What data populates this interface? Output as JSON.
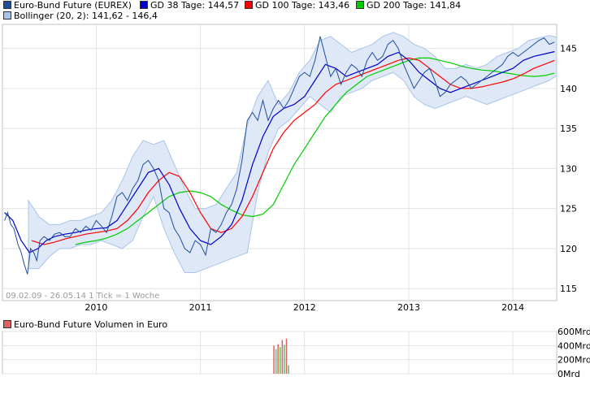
{
  "legend": [
    {
      "label": "Euro-Bund Future (EUREX)",
      "color": "#1f4e9c"
    },
    {
      "label": "GD 38 Tage: 144,57",
      "color": "#0000cc"
    },
    {
      "label": "GD 100 Tage: 143,46",
      "color": "#ff0000"
    },
    {
      "label": "GD 200 Tage: 141,84",
      "color": "#00cc00"
    },
    {
      "label": "Bollinger (20, 2): 141,62 - 146,4",
      "color": "#a9c4e8"
    }
  ],
  "info_text": "09.02.09 - 26.05.14   1 Tick = 1 Woche",
  "volume_legend": {
    "label": "Euro-Bund Future Volumen in Euro",
    "color": "#e06060"
  },
  "chart_data": [
    {
      "type": "line",
      "x_ticks": [
        "2010",
        "2011",
        "2012",
        "2013",
        "2014"
      ],
      "x_tick_years": [
        2010,
        2011,
        2012,
        2013,
        2014
      ],
      "y_ticks": [
        115,
        120,
        125,
        130,
        135,
        140,
        145
      ],
      "ylim": [
        113.5,
        148
      ],
      "xlim": [
        2009.1,
        2014.42
      ],
      "grid": true,
      "series": [
        {
          "name": "Euro-Bund Future (EUREX)",
          "color": "#1f4e9c",
          "x": [
            2009.12,
            2009.15,
            2009.18,
            2009.21,
            2009.25,
            2009.28,
            2009.31,
            2009.34,
            2009.37,
            2009.4,
            2009.43,
            2009.46,
            2009.5,
            2009.55,
            2009.6,
            2009.65,
            2009.7,
            2009.75,
            2009.8,
            2009.85,
            2009.9,
            2009.95,
            2010.0,
            2010.05,
            2010.1,
            2010.15,
            2010.2,
            2010.25,
            2010.3,
            2010.35,
            2010.4,
            2010.45,
            2010.5,
            2010.55,
            2010.6,
            2010.65,
            2010.7,
            2010.75,
            2010.8,
            2010.85,
            2010.9,
            2010.95,
            2011.0,
            2011.05,
            2011.1,
            2011.15,
            2011.2,
            2011.25,
            2011.3,
            2011.35,
            2011.4,
            2011.45,
            2011.5,
            2011.55,
            2011.6,
            2011.65,
            2011.7,
            2011.75,
            2011.8,
            2011.85,
            2011.9,
            2011.95,
            2012.0,
            2012.05,
            2012.1,
            2012.15,
            2012.2,
            2012.25,
            2012.3,
            2012.35,
            2012.4,
            2012.45,
            2012.5,
            2012.55,
            2012.6,
            2012.65,
            2012.7,
            2012.75,
            2012.8,
            2012.85,
            2012.9,
            2012.95,
            2013.0,
            2013.05,
            2013.1,
            2013.15,
            2013.2,
            2013.25,
            2013.3,
            2013.35,
            2013.4,
            2013.45,
            2013.5,
            2013.55,
            2013.6,
            2013.65,
            2013.7,
            2013.75,
            2013.8,
            2013.85,
            2013.9,
            2013.95,
            2014.0,
            2014.05,
            2014.1,
            2014.15,
            2014.2,
            2014.25,
            2014.3,
            2014.35,
            2014.4
          ],
          "y": [
            123.5,
            124.5,
            123.0,
            122.5,
            120.5,
            119.5,
            118.0,
            116.8,
            120.0,
            119.5,
            118.5,
            121.0,
            121.5,
            121.0,
            121.8,
            122.0,
            121.5,
            121.5,
            122.5,
            122.0,
            122.8,
            122.3,
            123.5,
            122.8,
            122.0,
            124.0,
            126.5,
            127.0,
            126.0,
            127.5,
            128.5,
            130.5,
            131.0,
            130.0,
            128.5,
            125.0,
            124.5,
            122.5,
            121.5,
            120.0,
            119.5,
            121.0,
            120.5,
            119.2,
            122.5,
            122.0,
            123.0,
            124.5,
            125.5,
            127.5,
            131.0,
            136.0,
            137.0,
            136.0,
            138.5,
            136.0,
            137.5,
            138.5,
            137.5,
            138.5,
            140.0,
            141.5,
            142.0,
            141.5,
            143.5,
            146.5,
            144.0,
            141.5,
            142.5,
            140.5,
            142.0,
            143.0,
            142.5,
            141.5,
            143.5,
            144.5,
            143.5,
            144.0,
            145.5,
            146.0,
            145.0,
            143.0,
            141.5,
            140.0,
            141.0,
            142.0,
            142.5,
            141.0,
            139.0,
            139.5,
            140.5,
            141.0,
            141.5,
            141.0,
            140.0,
            140.5,
            141.0,
            141.5,
            142.0,
            142.5,
            143.0,
            144.0,
            144.5,
            144.0,
            144.5,
            145.0,
            145.5,
            146.0,
            146.3,
            145.5,
            145.8
          ]
        },
        {
          "name": "GD 38 Tage",
          "color": "#0000cc",
          "x": [
            2009.12,
            2009.2,
            2009.28,
            2009.36,
            2009.44,
            2009.52,
            2009.6,
            2009.7,
            2009.8,
            2009.9,
            2010.0,
            2010.1,
            2010.2,
            2010.3,
            2010.4,
            2010.5,
            2010.6,
            2010.7,
            2010.8,
            2010.9,
            2011.0,
            2011.1,
            2011.2,
            2011.3,
            2011.4,
            2011.5,
            2011.6,
            2011.7,
            2011.8,
            2011.9,
            2012.0,
            2012.1,
            2012.2,
            2012.3,
            2012.4,
            2012.5,
            2012.6,
            2012.7,
            2012.8,
            2012.9,
            2013.0,
            2013.1,
            2013.2,
            2013.3,
            2013.4,
            2013.5,
            2013.6,
            2013.7,
            2013.8,
            2013.9,
            2014.0,
            2014.1,
            2014.2,
            2014.3,
            2014.4
          ],
          "y": [
            124.5,
            123.5,
            121.0,
            119.5,
            120.0,
            121.0,
            121.5,
            121.8,
            122.0,
            122.3,
            122.5,
            122.6,
            123.5,
            125.5,
            127.5,
            129.5,
            130.0,
            128.0,
            125.0,
            122.5,
            121.0,
            120.5,
            121.5,
            123.0,
            126.0,
            130.5,
            134.0,
            136.5,
            137.5,
            138.0,
            139.0,
            141.0,
            143.0,
            142.5,
            141.5,
            142.0,
            142.5,
            143.0,
            144.0,
            144.5,
            143.5,
            142.0,
            141.0,
            140.0,
            139.5,
            140.0,
            140.5,
            141.0,
            141.5,
            142.0,
            142.5,
            143.5,
            144.0,
            144.3,
            144.6
          ]
        },
        {
          "name": "GD 100 Tage",
          "color": "#ff0000",
          "x": [
            2009.38,
            2009.5,
            2009.6,
            2009.7,
            2009.8,
            2009.9,
            2010.0,
            2010.1,
            2010.2,
            2010.3,
            2010.4,
            2010.5,
            2010.6,
            2010.7,
            2010.8,
            2010.9,
            2011.0,
            2011.1,
            2011.2,
            2011.3,
            2011.4,
            2011.5,
            2011.6,
            2011.7,
            2011.8,
            2011.9,
            2012.0,
            2012.1,
            2012.2,
            2012.3,
            2012.4,
            2012.5,
            2012.6,
            2012.7,
            2012.8,
            2012.9,
            2013.0,
            2013.1,
            2013.2,
            2013.3,
            2013.4,
            2013.5,
            2013.6,
            2013.7,
            2013.8,
            2013.9,
            2014.0,
            2014.1,
            2014.2,
            2014.3,
            2014.4
          ],
          "y": [
            121.0,
            120.5,
            120.8,
            121.2,
            121.5,
            121.8,
            122.0,
            122.2,
            122.5,
            123.5,
            125.0,
            127.0,
            128.5,
            129.5,
            129.0,
            127.0,
            124.5,
            122.5,
            122.0,
            122.5,
            124.0,
            126.5,
            129.5,
            132.5,
            134.5,
            136.0,
            137.0,
            138.0,
            139.5,
            140.5,
            141.0,
            141.5,
            142.0,
            142.5,
            143.0,
            143.5,
            143.8,
            143.5,
            142.5,
            141.5,
            140.5,
            140.0,
            140.0,
            140.2,
            140.5,
            140.8,
            141.2,
            141.8,
            142.5,
            143.0,
            143.5
          ]
        },
        {
          "name": "GD 200 Tage",
          "color": "#00cc00",
          "x": [
            2009.8,
            2009.9,
            2010.0,
            2010.1,
            2010.2,
            2010.3,
            2010.4,
            2010.5,
            2010.6,
            2010.7,
            2010.8,
            2010.9,
            2011.0,
            2011.1,
            2011.2,
            2011.3,
            2011.4,
            2011.5,
            2011.6,
            2011.7,
            2011.8,
            2011.9,
            2012.0,
            2012.1,
            2012.2,
            2012.3,
            2012.4,
            2012.5,
            2012.6,
            2012.7,
            2012.8,
            2012.9,
            2013.0,
            2013.1,
            2013.2,
            2013.3,
            2013.4,
            2013.5,
            2013.6,
            2013.7,
            2013.8,
            2013.9,
            2014.0,
            2014.1,
            2014.2,
            2014.3,
            2014.4
          ],
          "y": [
            120.5,
            120.8,
            121.0,
            121.3,
            121.8,
            122.5,
            123.5,
            124.5,
            125.5,
            126.5,
            127.0,
            127.2,
            127.0,
            126.5,
            125.5,
            124.8,
            124.2,
            124.0,
            124.3,
            125.5,
            128.0,
            130.5,
            132.5,
            134.5,
            136.5,
            138.0,
            139.5,
            140.5,
            141.5,
            142.0,
            142.5,
            143.0,
            143.5,
            143.8,
            143.8,
            143.5,
            143.2,
            142.8,
            142.5,
            142.3,
            142.2,
            142.0,
            141.8,
            141.6,
            141.5,
            141.6,
            141.9
          ]
        },
        {
          "name": "Bollinger (20, 2)",
          "color": "#a9c4e8",
          "x": [
            2009.35,
            2009.45,
            2009.55,
            2009.65,
            2009.75,
            2009.85,
            2009.95,
            2010.05,
            2010.15,
            2010.25,
            2010.35,
            2010.45,
            2010.55,
            2010.65,
            2010.75,
            2010.85,
            2010.95,
            2011.05,
            2011.15,
            2011.25,
            2011.35,
            2011.45,
            2011.55,
            2011.65,
            2011.75,
            2011.85,
            2011.95,
            2012.05,
            2012.15,
            2012.25,
            2012.35,
            2012.45,
            2012.55,
            2012.65,
            2012.75,
            2012.85,
            2012.95,
            2013.05,
            2013.15,
            2013.25,
            2013.35,
            2013.45,
            2013.55,
            2013.65,
            2013.75,
            2013.85,
            2013.95,
            2014.05,
            2014.15,
            2014.25,
            2014.35,
            2014.42
          ],
          "upper": [
            126.0,
            124.0,
            123.0,
            123.0,
            123.5,
            123.5,
            124.0,
            124.5,
            126.0,
            128.5,
            131.5,
            133.5,
            133.0,
            133.5,
            130.5,
            127.5,
            125.0,
            125.0,
            125.5,
            127.5,
            129.5,
            135.5,
            139.0,
            141.0,
            138.0,
            139.5,
            142.0,
            143.5,
            146.0,
            146.5,
            145.5,
            144.5,
            145.0,
            145.5,
            146.5,
            147.0,
            146.5,
            145.5,
            145.0,
            144.0,
            142.5,
            142.5,
            143.0,
            142.5,
            143.0,
            144.0,
            144.5,
            145.0,
            146.0,
            146.3,
            146.6,
            146.4
          ],
          "lower": [
            117.5,
            117.5,
            119.0,
            120.0,
            120.0,
            120.5,
            120.5,
            121.0,
            120.5,
            120.0,
            121.0,
            124.0,
            126.5,
            122.5,
            119.5,
            117.0,
            117.0,
            117.5,
            118.0,
            118.5,
            119.0,
            119.5,
            127.0,
            132.0,
            135.0,
            136.0,
            137.5,
            139.0,
            138.0,
            137.0,
            139.0,
            139.5,
            140.0,
            141.0,
            141.5,
            142.0,
            141.0,
            139.0,
            138.0,
            137.5,
            138.0,
            138.5,
            139.0,
            138.5,
            138.0,
            138.5,
            139.0,
            139.5,
            140.0,
            140.5,
            141.0,
            141.6
          ]
        }
      ]
    },
    {
      "type": "bar",
      "title": "Euro-Bund Future Volumen in Euro",
      "y_ticks": [
        "0Mrd",
        "200Mrd",
        "400Mrd",
        "600Mrd"
      ],
      "ylim": [
        0,
        600
      ],
      "x": [
        2011.7,
        2011.72,
        2011.74,
        2011.76,
        2011.78,
        2011.8,
        2011.82,
        2011.84
      ],
      "values": [
        400,
        350,
        420,
        380,
        480,
        410,
        500,
        120
      ]
    }
  ]
}
